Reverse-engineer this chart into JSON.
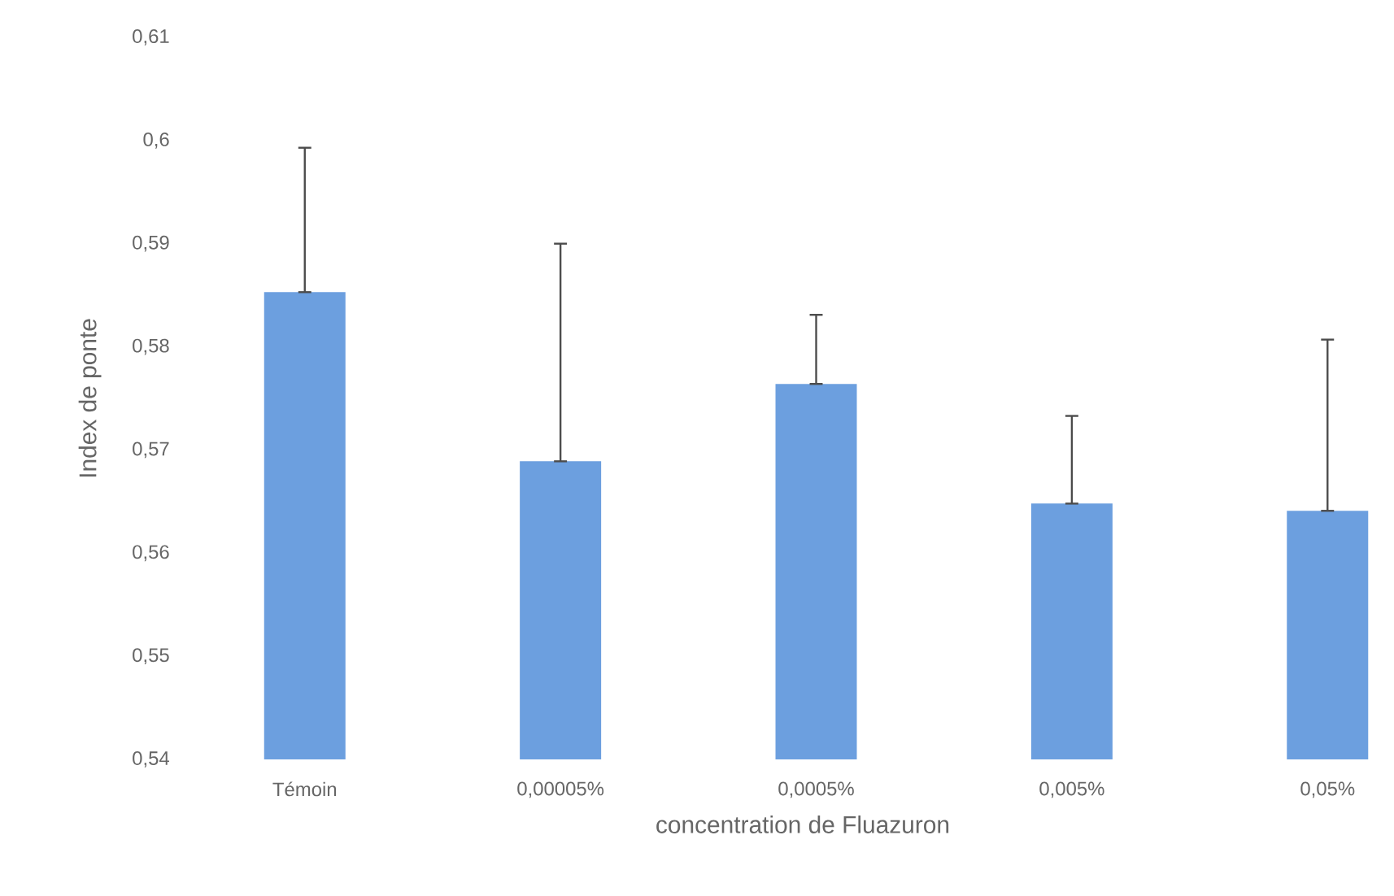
{
  "chart_data": {
    "type": "bar",
    "xlabel": "concentration de Fluazuron",
    "ylabel": "Index de ponte",
    "categories": [
      "Témoin",
      "0,00005%",
      "0,0005%",
      "0,005%",
      "0,05%"
    ],
    "values": [
      0.5853,
      0.5689,
      0.5764,
      0.5648,
      0.5641
    ],
    "errors": [
      [
        0.5853,
        0.5993
      ],
      [
        0.5689,
        0.59
      ],
      [
        0.5764,
        0.5831
      ],
      [
        0.5648,
        0.5733
      ],
      [
        0.5641,
        0.5807
      ]
    ],
    "color": "#6c9fdf",
    "ylim": [
      0.54,
      0.61
    ],
    "yticks": [
      {
        "value": 0.54,
        "label": "0,54"
      },
      {
        "value": 0.55,
        "label": "0,55"
      },
      {
        "value": 0.56,
        "label": "0,56"
      },
      {
        "value": 0.57,
        "label": "0,57"
      },
      {
        "value": 0.58,
        "label": "0,58"
      },
      {
        "value": 0.59,
        "label": "0,59"
      },
      {
        "value": 0.6,
        "label": "0,6"
      },
      {
        "value": 0.61,
        "label": "0,61"
      }
    ],
    "grid": false
  }
}
